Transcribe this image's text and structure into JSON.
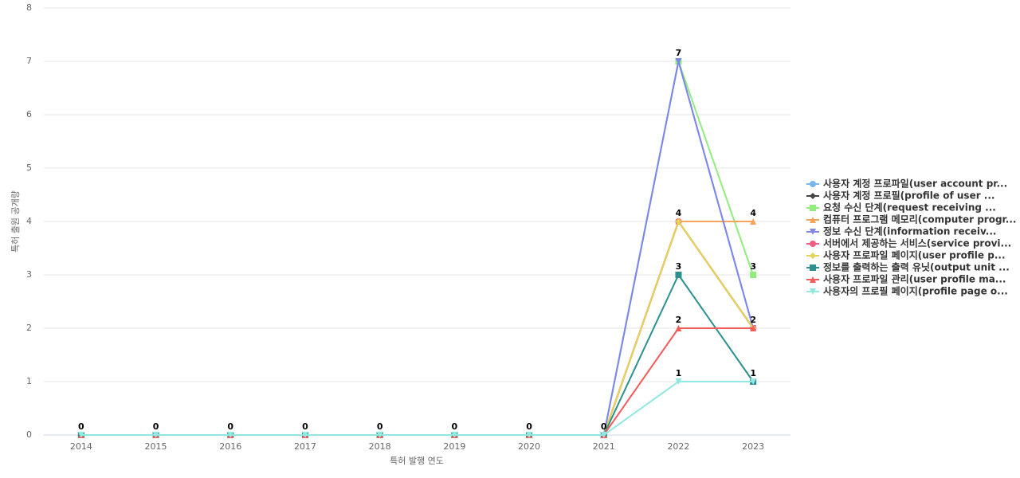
{
  "chart_data": {
    "type": "line",
    "x_label": "특허 발행 연도",
    "y_label": "특허 출원 공개량",
    "categories": [
      "2014",
      "2015",
      "2016",
      "2017",
      "2018",
      "2019",
      "2020",
      "2021",
      "2022",
      "2023"
    ],
    "ylim": [
      0,
      8
    ],
    "yticks": [
      0,
      1,
      2,
      3,
      4,
      5,
      6,
      7,
      8
    ],
    "grid": true,
    "legend": "right",
    "series": [
      {
        "name": "사용자 계정 프로파일(user account pr...",
        "color": "#7cb5ec",
        "marker": "circle",
        "values": [
          0,
          0,
          0,
          0,
          0,
          0,
          0,
          0,
          7,
          2
        ]
      },
      {
        "name": "사용자 계정 프로필(profile of user ...",
        "color": "#434348",
        "marker": "diamond",
        "values": [
          0,
          0,
          0,
          0,
          0,
          0,
          0,
          0,
          4,
          2
        ]
      },
      {
        "name": "요청 수신 단계(request receiving ...",
        "color": "#90ed7d",
        "marker": "square",
        "values": [
          0,
          0,
          0,
          0,
          0,
          0,
          0,
          0,
          7,
          3
        ]
      },
      {
        "name": "컴퓨터 프로그램 메모리(computer progr...",
        "color": "#f7a35c",
        "marker": "triangle",
        "values": [
          0,
          0,
          0,
          0,
          0,
          0,
          0,
          0,
          4,
          4
        ]
      },
      {
        "name": "정보 수신 단계(information receiv...",
        "color": "#8085e9",
        "marker": "triangle-down",
        "values": [
          0,
          0,
          0,
          0,
          0,
          0,
          0,
          0,
          7,
          2
        ]
      },
      {
        "name": "서버에서 제공하는 서비스(service provi...",
        "color": "#f15c80",
        "marker": "circle",
        "values": [
          0,
          0,
          0,
          0,
          0,
          0,
          0,
          0,
          4,
          2
        ]
      },
      {
        "name": "사용자 프로파일 페이지(user profile p...",
        "color": "#e4d354",
        "marker": "diamond",
        "values": [
          0,
          0,
          0,
          0,
          0,
          0,
          0,
          0,
          4,
          2
        ]
      },
      {
        "name": "정보를 출력하는 출력 유닛(output unit ...",
        "color": "#2b908f",
        "marker": "square",
        "values": [
          0,
          0,
          0,
          0,
          0,
          0,
          0,
          0,
          3,
          1
        ]
      },
      {
        "name": "사용자 프로파일 관리(user profile ma...",
        "color": "#f45b5b",
        "marker": "triangle",
        "values": [
          0,
          0,
          0,
          0,
          0,
          0,
          0,
          0,
          2,
          2
        ]
      },
      {
        "name": "사용자의 프로필 페이지(profile page o...",
        "color": "#91e8e1",
        "marker": "triangle-down",
        "values": [
          0,
          0,
          0,
          0,
          0,
          0,
          0,
          0,
          1,
          1
        ]
      }
    ]
  }
}
